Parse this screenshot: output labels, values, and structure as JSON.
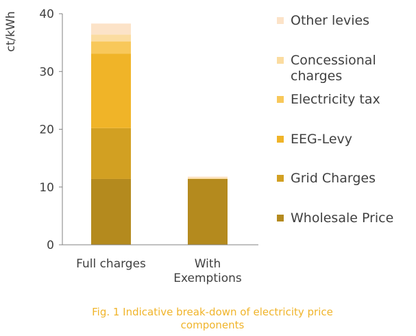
{
  "chart_data": {
    "type": "bar",
    "stacked": true,
    "ylabel": "ct/kWh",
    "ylim": [
      0,
      40
    ],
    "yticks": [
      0,
      10,
      20,
      30,
      40
    ],
    "grid": false,
    "legend_position": "right",
    "categories": [
      {
        "lines": [
          "Full charges"
        ]
      },
      {
        "lines": [
          "With",
          "Exemptions"
        ]
      }
    ],
    "series": [
      {
        "name": "Wholesale Price",
        "color": "#b48a1e",
        "values": [
          11.4,
          11.4
        ]
      },
      {
        "name": "Grid Charges",
        "color": "#d2a022",
        "values": [
          8.8,
          0
        ]
      },
      {
        "name": "EEG-Levy",
        "color": "#f0b428",
        "values": [
          12.9,
          0
        ]
      },
      {
        "name": "Electricity tax",
        "color": "#f8c85a",
        "values": [
          2.1,
          0
        ]
      },
      {
        "name": "Concessional charges",
        "color": "#fbdca0",
        "values": [
          1.2,
          0.2
        ]
      },
      {
        "name": "Other levies",
        "color": "#fce3c8",
        "values": [
          1.9,
          0.2
        ]
      }
    ],
    "legend_order": [
      {
        "lines": [
          "Other levies"
        ],
        "series": 5
      },
      {
        "lines": [
          "Concessional",
          "charges"
        ],
        "series": 4
      },
      {
        "lines": [
          "Electricity tax"
        ],
        "series": 3
      },
      {
        "lines": [
          "EEG-Levy"
        ],
        "series": 2
      },
      {
        "lines": [
          "Grid Charges"
        ],
        "series": 1
      },
      {
        "lines": [
          "Wholesale Price"
        ],
        "series": 0
      }
    ]
  },
  "caption": {
    "line1": "Fig. 1 Indicative break-down of electricity price",
    "line2": "components"
  }
}
